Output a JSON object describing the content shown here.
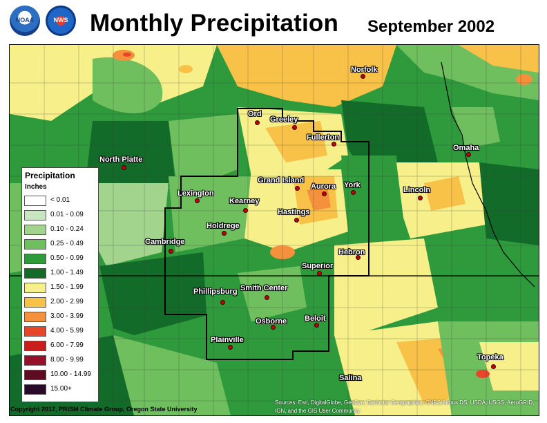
{
  "header": {
    "title": "Monthly Precipitation",
    "subtitle": "September 2002",
    "logos": [
      {
        "name": "noaa-logo",
        "label": "NOAA"
      },
      {
        "name": "nws-logo",
        "label": "NWS"
      }
    ]
  },
  "legend": {
    "title": "Precipitation",
    "units": "Inches",
    "entries": [
      {
        "label": "< 0.01",
        "color": "#ffffff"
      },
      {
        "label": "0.01 - 0.09",
        "color": "#c8e6c0"
      },
      {
        "label": "0.10 - 0.24",
        "color": "#a3d48e"
      },
      {
        "label": "0.25 - 0.49",
        "color": "#6fbf5e"
      },
      {
        "label": "0.50 - 0.99",
        "color": "#2e9a3c"
      },
      {
        "label": "1.00 - 1.49",
        "color": "#136b2a"
      },
      {
        "label": "1.50 - 1.99",
        "color": "#f7f08a"
      },
      {
        "label": "2.00 - 2.99",
        "color": "#f8c248"
      },
      {
        "label": "3.00 - 3.99",
        "color": "#f5913c"
      },
      {
        "label": "4.00 - 5.99",
        "color": "#e8462a"
      },
      {
        "label": "6.00 - 7.99",
        "color": "#c81e1e"
      },
      {
        "label": "8.00 - 9.99",
        "color": "#96102a"
      },
      {
        "label": "10.00 - 14.99",
        "color": "#5e0c22"
      },
      {
        "label": "15.00+",
        "color": "#2a0a2a"
      }
    ]
  },
  "cities": [
    {
      "name": "Norfolk"
    },
    {
      "name": "Ord"
    },
    {
      "name": "Greeley"
    },
    {
      "name": "Fullerton"
    },
    {
      "name": "North Platte"
    },
    {
      "name": "Omaha"
    },
    {
      "name": "Grand Island"
    },
    {
      "name": "Aurora"
    },
    {
      "name": "York"
    },
    {
      "name": "Lincoln"
    },
    {
      "name": "Lexington"
    },
    {
      "name": "Kearney"
    },
    {
      "name": "Hastings"
    },
    {
      "name": "Holdrege"
    },
    {
      "name": "Cambridge"
    },
    {
      "name": "Hebron"
    },
    {
      "name": "Superior"
    },
    {
      "name": "Phillipsburg"
    },
    {
      "name": "Smith Center"
    },
    {
      "name": "Osborne"
    },
    {
      "name": "Beloit"
    },
    {
      "name": "Plainville"
    },
    {
      "name": "Topeka"
    },
    {
      "name": "Salina"
    }
  ],
  "footer": {
    "copyright": "Copyright 2017, PRISM Climate Group, Oregon State University",
    "attribution_line1": "Sources: Esri, DigitalGlobe, GeoEye, Earthstar Geographics, CNES/Airbus DS, USDA, USGS, AeroGRID,",
    "attribution_line2": "IGN, and the GIS User Community"
  }
}
